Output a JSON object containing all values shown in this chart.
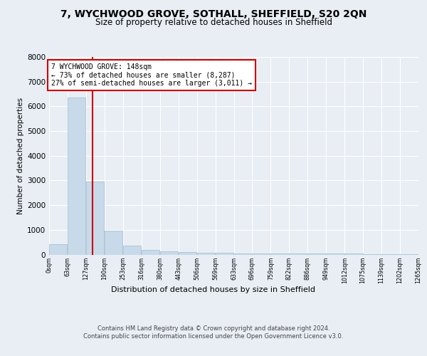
{
  "title1": "7, WYCHWOOD GROVE, SOTHALL, SHEFFIELD, S20 2QN",
  "title2": "Size of property relative to detached houses in Sheffield",
  "xlabel": "Distribution of detached houses by size in Sheffield",
  "ylabel": "Number of detached properties",
  "bar_values": [
    430,
    6370,
    2950,
    960,
    370,
    200,
    140,
    100,
    75,
    60,
    55,
    50,
    45,
    40,
    38,
    35,
    30,
    25,
    20,
    18
  ],
  "bar_labels": [
    "0sqm",
    "63sqm",
    "127sqm",
    "190sqm",
    "253sqm",
    "316sqm",
    "380sqm",
    "443sqm",
    "506sqm",
    "569sqm",
    "633sqm",
    "696sqm",
    "759sqm",
    "822sqm",
    "886sqm",
    "949sqm",
    "1012sqm",
    "1075sqm",
    "1139sqm",
    "1202sqm",
    "1265sqm"
  ],
  "bar_color": "#c8daea",
  "bar_edge_color": "#a0bcd0",
  "property_line_x": 148,
  "property_line_color": "#cc0000",
  "annotation_text": "7 WYCHWOOD GROVE: 148sqm\n← 73% of detached houses are smaller (8,287)\n27% of semi-detached houses are larger (3,011) →",
  "annotation_box_color": "#ffffff",
  "annotation_box_edge_color": "#cc0000",
  "ylim": [
    0,
    8000
  ],
  "yticks": [
    0,
    1000,
    2000,
    3000,
    4000,
    5000,
    6000,
    7000,
    8000
  ],
  "footnote": "Contains HM Land Registry data © Crown copyright and database right 2024.\nContains public sector information licensed under the Open Government Licence v3.0.",
  "background_color": "#e8eef4",
  "plot_background": "#e8eef4",
  "bin_width": 63,
  "n_bins": 20,
  "title1_fontsize": 10,
  "title2_fontsize": 8.5
}
